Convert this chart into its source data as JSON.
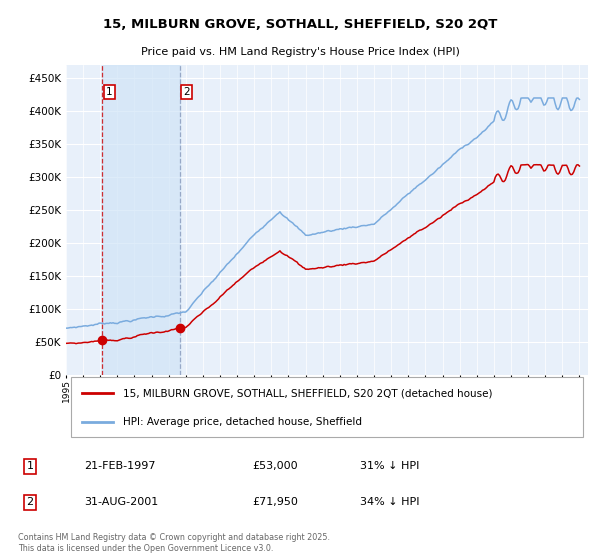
{
  "title_line1": "15, MILBURN GROVE, SOTHALL, SHEFFIELD, S20 2QT",
  "title_line2": "Price paid vs. HM Land Registry's House Price Index (HPI)",
  "red_line_label": "15, MILBURN GROVE, SOTHALL, SHEFFIELD, S20 2QT (detached house)",
  "blue_line_label": "HPI: Average price, detached house, Sheffield",
  "purchase1_year": 1997.13,
  "purchase1_price": 53000,
  "purchase2_year": 2001.67,
  "purchase2_price": 71950,
  "ytick_values": [
    0,
    50000,
    100000,
    150000,
    200000,
    250000,
    300000,
    350000,
    400000,
    450000
  ],
  "ytick_labels": [
    "£0",
    "£50K",
    "£100K",
    "£150K",
    "£200K",
    "£250K",
    "£300K",
    "£350K",
    "£400K",
    "£450K"
  ],
  "xmin": 1995.0,
  "xmax": 2025.5,
  "ymin": 0,
  "ymax": 470000,
  "red_color": "#cc0000",
  "blue_color": "#7aabde",
  "shade_color": "#d0e4f7",
  "vline1_color": "#cc0000",
  "vline2_color": "#8899bb",
  "plot_bg_color": "#e8f0fa",
  "grid_color": "#ffffff",
  "legend_border_color": "#aaaaaa",
  "footer_text": "Contains HM Land Registry data © Crown copyright and database right 2025.\nThis data is licensed under the Open Government Licence v3.0.",
  "legend_table_row1": [
    "1",
    "21-FEB-1997",
    "£53,000",
    "31% ↓ HPI"
  ],
  "legend_table_row2": [
    "2",
    "31-AUG-2001",
    "£71,950",
    "34% ↓ HPI"
  ]
}
